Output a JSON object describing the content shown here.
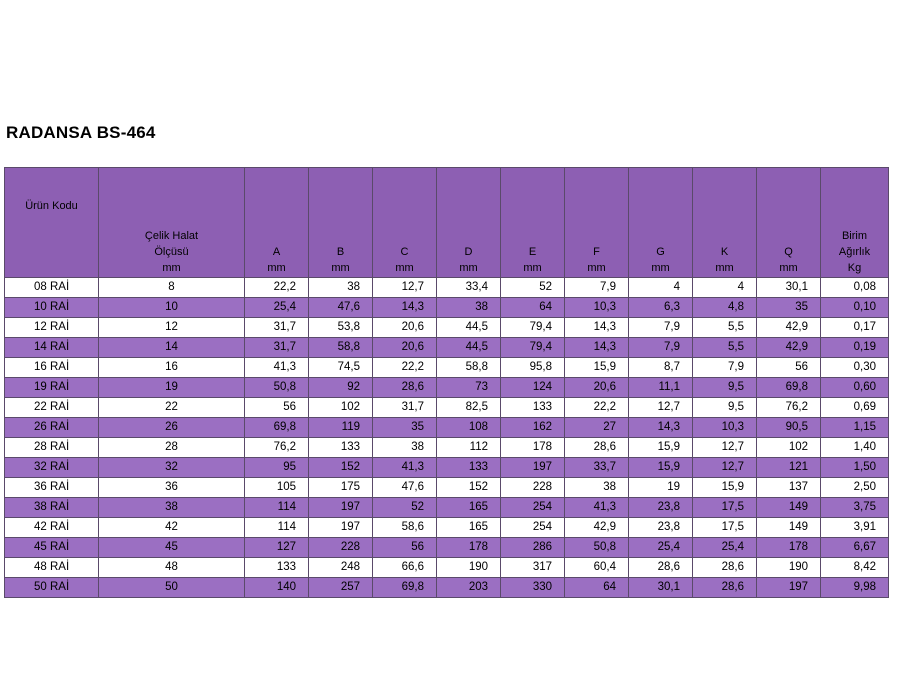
{
  "title": "RADANSA BS-464",
  "table": {
    "headers": {
      "code": "Ürün Kodu",
      "rope_line1": "Çelik Halat",
      "rope_line2": "Ölçüsü",
      "rope_unit": "mm",
      "cols": [
        {
          "label": "A",
          "unit": "mm"
        },
        {
          "label": "B",
          "unit": "mm"
        },
        {
          "label": "C",
          "unit": "mm"
        },
        {
          "label": "D",
          "unit": "mm"
        },
        {
          "label": "E",
          "unit": "mm"
        },
        {
          "label": "F",
          "unit": "mm"
        },
        {
          "label": "G",
          "unit": "mm"
        },
        {
          "label": "K",
          "unit": "mm"
        },
        {
          "label": "Q",
          "unit": "mm"
        }
      ],
      "weight_line1": "Birim",
      "weight_line2": "Ağırlık",
      "weight_unit": "Kg"
    },
    "rows": [
      [
        "08 RAİ",
        "8",
        "22,2",
        "38",
        "12,7",
        "33,4",
        "52",
        "7,9",
        "4",
        "4",
        "30,1",
        "0,08"
      ],
      [
        "10 RAİ",
        "10",
        "25,4",
        "47,6",
        "14,3",
        "38",
        "64",
        "10,3",
        "6,3",
        "4,8",
        "35",
        "0,10"
      ],
      [
        "12 RAİ",
        "12",
        "31,7",
        "53,8",
        "20,6",
        "44,5",
        "79,4",
        "14,3",
        "7,9",
        "5,5",
        "42,9",
        "0,17"
      ],
      [
        "14 RAİ",
        "14",
        "31,7",
        "58,8",
        "20,6",
        "44,5",
        "79,4",
        "14,3",
        "7,9",
        "5,5",
        "42,9",
        "0,19"
      ],
      [
        "16 RAİ",
        "16",
        "41,3",
        "74,5",
        "22,2",
        "58,8",
        "95,8",
        "15,9",
        "8,7",
        "7,9",
        "56",
        "0,30"
      ],
      [
        "19 RAİ",
        "19",
        "50,8",
        "92",
        "28,6",
        "73",
        "124",
        "20,6",
        "11,1",
        "9,5",
        "69,8",
        "0,60"
      ],
      [
        "22 RAİ",
        "22",
        "56",
        "102",
        "31,7",
        "82,5",
        "133",
        "22,2",
        "12,7",
        "9,5",
        "76,2",
        "0,69"
      ],
      [
        "26 RAİ",
        "26",
        "69,8",
        "119",
        "35",
        "108",
        "162",
        "27",
        "14,3",
        "10,3",
        "90,5",
        "1,15"
      ],
      [
        "28 RAİ",
        "28",
        "76,2",
        "133",
        "38",
        "112",
        "178",
        "28,6",
        "15,9",
        "12,7",
        "102",
        "1,40"
      ],
      [
        "32 RAİ",
        "32",
        "95",
        "152",
        "41,3",
        "133",
        "197",
        "33,7",
        "15,9",
        "12,7",
        "121",
        "1,50"
      ],
      [
        "36 RAİ",
        "36",
        "105",
        "175",
        "47,6",
        "152",
        "228",
        "38",
        "19",
        "15,9",
        "137",
        "2,50"
      ],
      [
        "38 RAİ",
        "38",
        "114",
        "197",
        "52",
        "165",
        "254",
        "41,3",
        "23,8",
        "17,5",
        "149",
        "3,75"
      ],
      [
        "42 RAİ",
        "42",
        "114",
        "197",
        "58,6",
        "165",
        "254",
        "42,9",
        "23,8",
        "17,5",
        "149",
        "3,91"
      ],
      [
        "45 RAİ",
        "45",
        "127",
        "228",
        "56",
        "178",
        "286",
        "50,8",
        "25,4",
        "25,4",
        "178",
        "6,67"
      ],
      [
        "48 RAİ",
        "48",
        "133",
        "248",
        "66,6",
        "190",
        "317",
        "60,4",
        "28,6",
        "28,6",
        "190",
        "8,42"
      ],
      [
        "50 RAİ",
        "50",
        "140",
        "257",
        "69,8",
        "203",
        "330",
        "64",
        "30,1",
        "28,6",
        "197",
        "9,98"
      ]
    ]
  },
  "colors": {
    "header_bg": "#8d5fb3",
    "stripe_bg": "#9b6fc2",
    "row_bg": "#ffffff",
    "border": "#5a4a6a"
  }
}
